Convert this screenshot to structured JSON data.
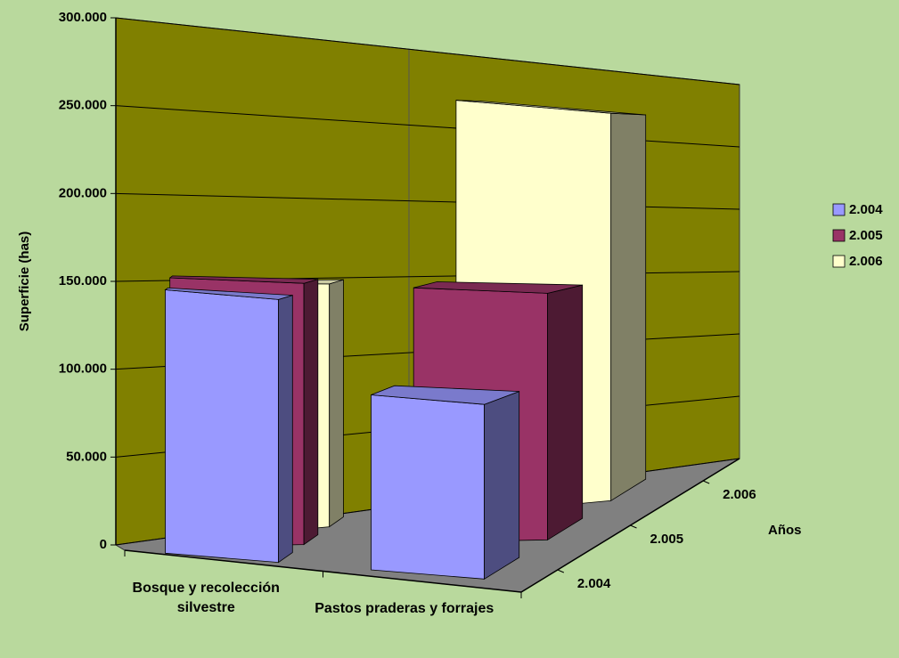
{
  "chart_data": {
    "type": "bar3d",
    "categories": [
      "Bosque y recolección silvestre",
      "Pastos praderas y forrajes"
    ],
    "series": [
      {
        "name": "2.004",
        "color": "#9999ff",
        "values": [
          150000,
          100000
        ]
      },
      {
        "name": "2.005",
        "color": "#993366",
        "values": [
          155000,
          155000
        ]
      },
      {
        "name": "2.006",
        "color": "#ffffcc",
        "values": [
          150000,
          270000
        ]
      }
    ],
    "ylabel": "Superficie (has)",
    "zlabel": "Años",
    "ylim": [
      0,
      300000
    ],
    "yticks": [
      0,
      {
        "value": 50000,
        "label": "50.000"
      },
      {
        "value": 100000,
        "label": "100.000"
      },
      {
        "value": 150000,
        "label": "150.000"
      },
      {
        "value": 200000,
        "label": "200.000"
      },
      {
        "value": 250000,
        "label": "250.000"
      },
      {
        "value": 300000,
        "label": "300.000"
      }
    ],
    "grid": true,
    "legend": "right",
    "wall_color": "#808000",
    "floor_color": "#808080"
  }
}
